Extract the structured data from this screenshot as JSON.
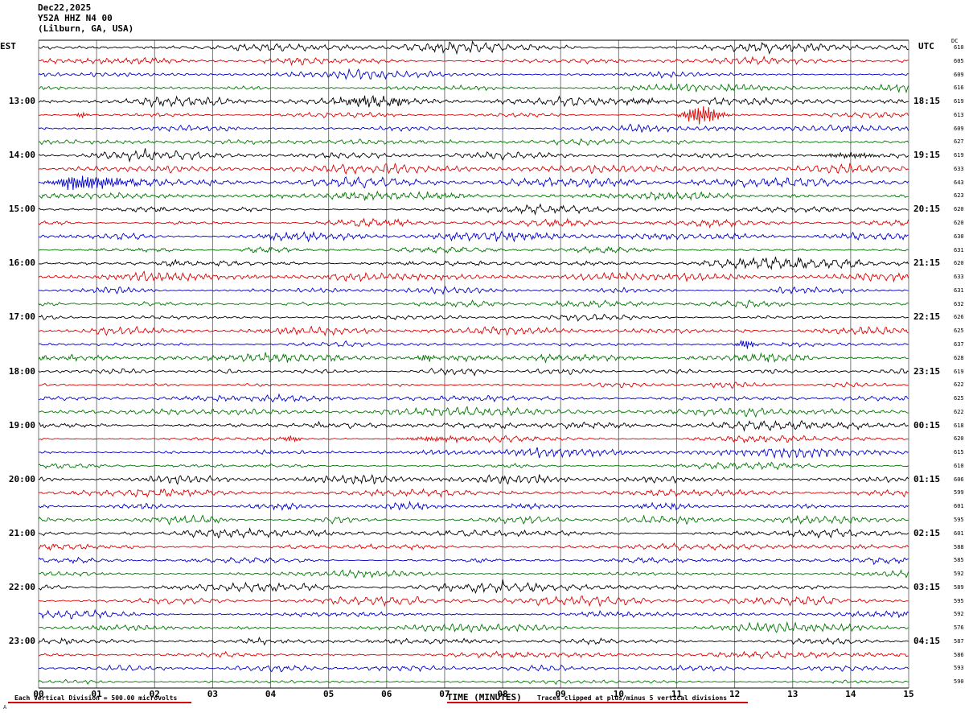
{
  "header": {
    "date": "Dec22,2025",
    "station": "Y52A HHZ N4 00",
    "location": "(Lilburn, GA, USA)",
    "left_tz": "EST",
    "right_tz": "UTC",
    "dc_label": "DC"
  },
  "axis": {
    "x_label": "TIME (MINUTES)",
    "x_ticks": [
      "00",
      "01",
      "02",
      "03",
      "04",
      "05",
      "06",
      "07",
      "08",
      "09",
      "10",
      "11",
      "12",
      "13",
      "14",
      "15"
    ]
  },
  "footer": {
    "left": "Each Vertical Division =  500.00 microvolts",
    "right": "Traces clipped at plus/minus 5 vertical divisions",
    "corner": "A"
  },
  "chart_data": {
    "type": "line",
    "subtype": "helicorder-seismogram",
    "title": "Y52A HHZ N4 00 (Lilburn, GA, USA) Dec22,2025",
    "xlabel": "TIME (MINUTES)",
    "x_range": [
      0,
      15
    ],
    "rows": 48,
    "minutes_per_row": 15,
    "row_colors": [
      "#000000",
      "#dd0000",
      "#0000cc",
      "#007700"
    ],
    "first_hour_label_row": 4,
    "hour_label_step": 4,
    "left_hour_labels": [
      "13:00",
      "14:00",
      "15:00",
      "16:00",
      "17:00",
      "18:00",
      "19:00",
      "20:00",
      "21:00",
      "22:00",
      "23:00"
    ],
    "right_hour_labels": [
      "18:15",
      "19:15",
      "20:15",
      "21:15",
      "22:15",
      "23:15",
      "00:15",
      "01:15",
      "02:15",
      "03:15",
      "04:15"
    ],
    "dc_values": [
      610,
      605,
      609,
      616,
      619,
      613,
      609,
      627,
      619,
      633,
      643,
      623,
      620,
      620,
      630,
      631,
      620,
      633,
      631,
      632,
      626,
      625,
      637,
      628,
      619,
      622,
      625,
      622,
      618,
      620,
      615,
      610,
      606,
      599,
      601,
      595,
      601,
      588,
      585,
      592,
      589,
      595,
      592,
      576,
      587,
      586,
      593,
      590
    ],
    "clip_divisions": 5,
    "microvolts_per_division": 500.0,
    "events": [
      {
        "row": 4,
        "minute": 5.8,
        "amp": 6.0,
        "width": 0.4
      },
      {
        "row": 4,
        "minute": 10.4,
        "amp": 3.5,
        "width": 0.25
      },
      {
        "row": 5,
        "minute": 0.75,
        "amp": 4.5,
        "width": 0.06
      },
      {
        "row": 5,
        "minute": 11.45,
        "amp": 13.0,
        "width": 0.22
      },
      {
        "row": 8,
        "minute": 14.0,
        "amp": 3.5,
        "width": 0.35
      },
      {
        "row": 10,
        "minute": 0.7,
        "amp": 10.0,
        "width": 0.3
      },
      {
        "row": 10,
        "minute": 1.35,
        "amp": 4.0,
        "width": 0.4
      },
      {
        "row": 22,
        "minute": 12.2,
        "amp": 6.5,
        "width": 0.1
      },
      {
        "row": 23,
        "minute": 6.7,
        "amp": 5.5,
        "width": 0.09
      },
      {
        "row": 29,
        "minute": 4.35,
        "amp": 4.5,
        "width": 0.12
      },
      {
        "row": 29,
        "minute": 6.9,
        "amp": 3.2,
        "width": 0.45
      }
    ],
    "legend": "off",
    "grid": "vertical-minute-lines"
  }
}
